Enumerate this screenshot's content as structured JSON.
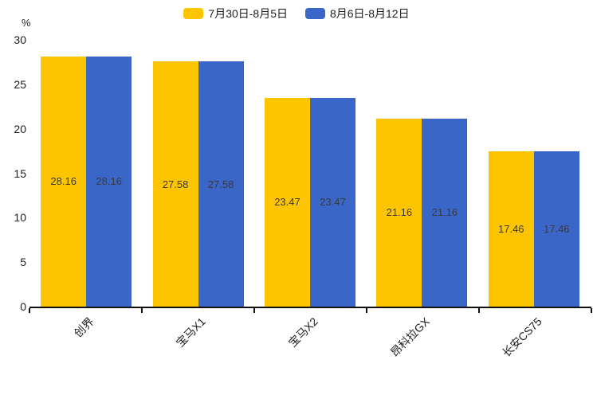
{
  "legend": {
    "items": [
      {
        "label": "7月30日-8月5日",
        "color": "#FDC500"
      },
      {
        "label": "8月6日-8月12日",
        "color": "#3A66C8"
      }
    ]
  },
  "chart_data": {
    "type": "bar",
    "categories": [
      "创界",
      "宝马X1",
      "宝马X2",
      "昂科拉GX",
      "长安CS75"
    ],
    "series": [
      {
        "name": "7月30日-8月5日",
        "color": "#FDC500",
        "values": [
          28.16,
          27.58,
          23.47,
          21.16,
          17.46
        ]
      },
      {
        "name": "8月6日-8月12日",
        "color": "#3A66C8",
        "values": [
          28.16,
          27.58,
          23.47,
          21.16,
          17.46
        ]
      }
    ],
    "title": "",
    "xlabel": "",
    "ylabel": "%",
    "ylim": [
      0,
      30
    ],
    "yticks": [
      0,
      5,
      10,
      15,
      20,
      25,
      30
    ],
    "grid": false,
    "legend_position": "top-center",
    "value_labels": "inside-center",
    "value_label_color": "#3a3a3a",
    "axis_color": "#111111"
  }
}
